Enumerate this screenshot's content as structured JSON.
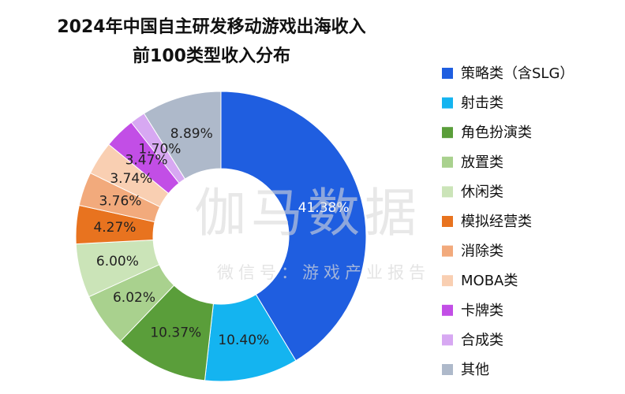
{
  "chart_data": {
    "type": "donut",
    "title": [
      "2024年中国自主研发移动游戏出海收入",
      "前100类型收入分布"
    ],
    "categories": [
      "策略类（含SLG）",
      "射击类",
      "角色扮演类",
      "放置类",
      "休闲类",
      "模拟经营类",
      "消除类",
      "MOBA类",
      "卡牌类",
      "合成类",
      "其他"
    ],
    "values": [
      41.38,
      10.4,
      10.37,
      6.02,
      6.0,
      4.27,
      3.76,
      3.74,
      3.47,
      1.7,
      8.89
    ],
    "value_labels": [
      "41.38%",
      "10.40%",
      "10.37%",
      "6.02%",
      "6.00%",
      "4.27%",
      "3.76%",
      "3.74%",
      "3.47%",
      "1.70%",
      "8.89%"
    ],
    "colors": [
      "#1f5ee0",
      "#14b4f0",
      "#5a9e3a",
      "#a9d18e",
      "#cbe4b8",
      "#e8731f",
      "#f2aa7c",
      "#f9cfb2",
      "#c24ee6",
      "#d7a8f2",
      "#aeb9ca"
    ],
    "legend": "right",
    "watermark": [
      "伽马数据",
      "微信号：游戏产业报告"
    ]
  }
}
